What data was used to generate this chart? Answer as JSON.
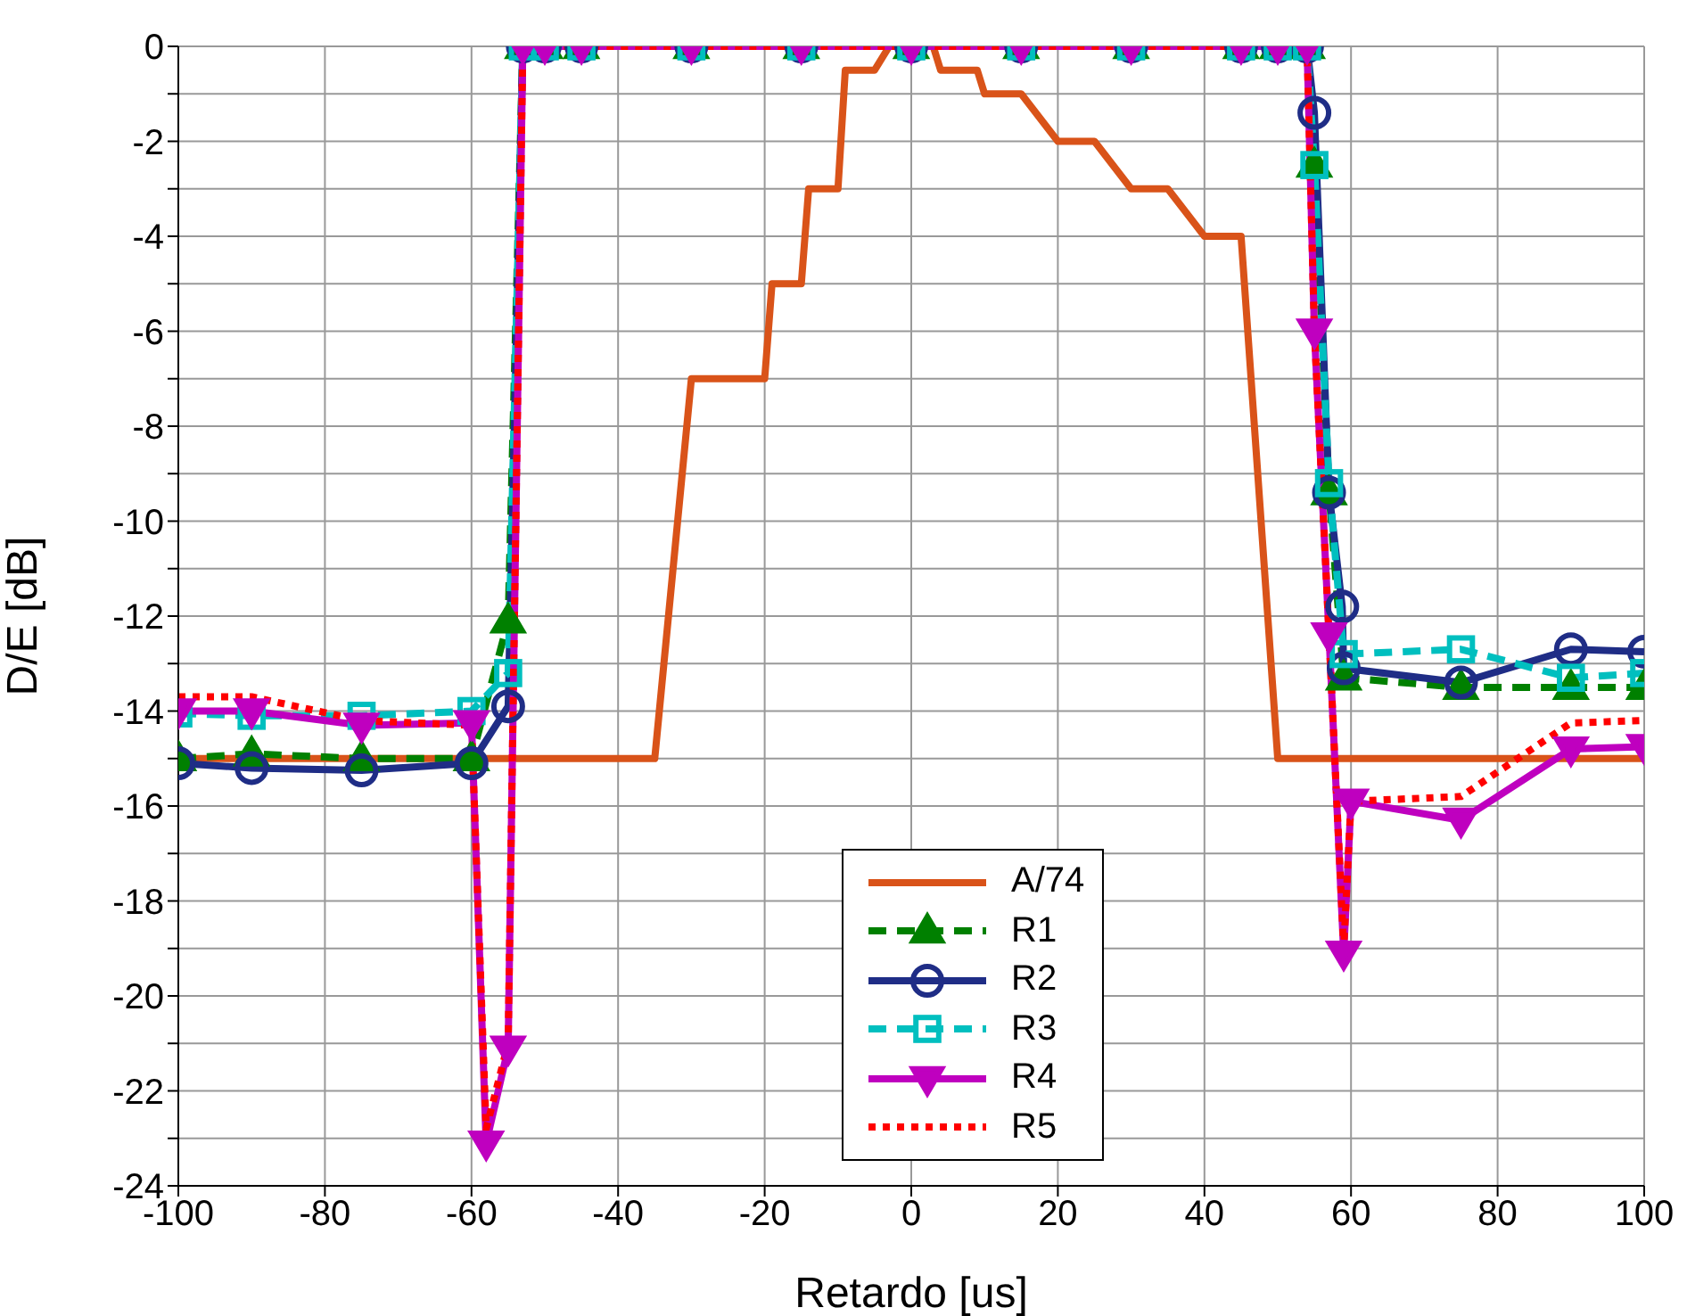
{
  "chart_data": {
    "type": "line",
    "xlabel": "Retardo [us]",
    "ylabel": "D/E [dB]",
    "xlim": [
      -100,
      100
    ],
    "ylim": [
      -24,
      0
    ],
    "xticks": [
      -100,
      -80,
      -60,
      -40,
      -20,
      0,
      20,
      40,
      60,
      80,
      100
    ],
    "yticks": [
      0,
      {
        "value": -1,
        "label": null
      },
      -2,
      {
        "value": -3,
        "label": null
      },
      -4,
      {
        "value": -5,
        "label": null
      },
      -6,
      {
        "value": -7,
        "label": null
      },
      -8,
      {
        "value": -9,
        "label": null
      },
      -10,
      {
        "value": -11,
        "label": null
      },
      -12,
      {
        "value": -13,
        "label": null
      },
      -14,
      {
        "value": -15,
        "label": null
      },
      -16,
      {
        "value": -17,
        "label": null
      },
      -18,
      {
        "value": -19,
        "label": null
      },
      -20,
      {
        "value": -21,
        "label": null
      },
      -22,
      {
        "value": -23,
        "label": null
      },
      -24
    ],
    "grid": true,
    "legend": "bottom",
    "series": [
      {
        "name": "A/74",
        "color": "#d95319",
        "marker": "none",
        "line_style": "solid",
        "x": [
          -100,
          -35,
          -30,
          -20,
          -19,
          -15,
          -14,
          -10,
          -9,
          -5,
          -3,
          3,
          4,
          9,
          10,
          15,
          20,
          25,
          30,
          35,
          40,
          45,
          50,
          100
        ],
        "values": [
          -15,
          -15,
          -7,
          -7,
          -5,
          -5,
          -3,
          -3,
          -0.5,
          -0.5,
          0,
          0,
          -0.5,
          -0.5,
          -1,
          -1,
          -2,
          -2,
          -3,
          -3,
          -4,
          -4,
          -15,
          -15
        ]
      },
      {
        "name": "R1",
        "color": "#008000",
        "marker": "triangle",
        "line_style": "dashed",
        "x": [
          -100,
          -90,
          -75,
          -60,
          -55,
          -53,
          -50,
          -45,
          -30,
          -15,
          0,
          15,
          30,
          45,
          50,
          54,
          55,
          57,
          59,
          75,
          90,
          100
        ],
        "values": [
          -15,
          -14.9,
          -15,
          -15,
          -12.1,
          0,
          0,
          0,
          0,
          0,
          0,
          0,
          0,
          0,
          0,
          0,
          -2.5,
          -9.4,
          -13.3,
          -13.5,
          -13.5,
          -13.5
        ]
      },
      {
        "name": "R2",
        "color": "#1f2d86",
        "marker": "circle",
        "line_style": "solid",
        "x": [
          -100,
          -90,
          -75,
          -60,
          -55,
          -53,
          -50,
          -45,
          -30,
          -15,
          0,
          15,
          30,
          45,
          50,
          54,
          55,
          57,
          58.8,
          59,
          75,
          90,
          100
        ],
        "values": [
          -15.1,
          -15.2,
          -15.25,
          -15.1,
          -13.9,
          0,
          0,
          0,
          0,
          0,
          0,
          0,
          0,
          0,
          0,
          0,
          -1.4,
          -9.4,
          -11.8,
          -13.1,
          -13.4,
          -12.7,
          -12.75
        ]
      },
      {
        "name": "R3",
        "color": "#00bfbf",
        "marker": "square",
        "line_style": "dashed",
        "x": [
          -100,
          -90,
          -75,
          -60,
          -55,
          -53,
          -50,
          -45,
          -30,
          -15,
          0,
          15,
          30,
          45,
          50,
          54,
          55,
          57,
          59,
          75,
          90,
          100
        ],
        "values": [
          -14.05,
          -14.1,
          -14.1,
          -14,
          -13.2,
          0,
          0,
          0,
          0,
          0,
          0,
          0,
          0,
          0,
          0,
          0,
          -2.5,
          -9.2,
          -12.8,
          -12.7,
          -13.3,
          -13.2
        ]
      },
      {
        "name": "R4",
        "color": "#bf00bf",
        "marker": "triangle-down",
        "line_style": "solid",
        "x": [
          -100,
          -90,
          -75,
          -60,
          -58,
          -55,
          -53,
          -50,
          -45,
          -30,
          -15,
          0,
          15,
          30,
          45,
          50,
          54,
          55,
          57,
          59,
          60,
          75,
          90,
          100
        ],
        "values": [
          -14,
          -14,
          -14.3,
          -14.25,
          -23.1,
          -21.1,
          0,
          0,
          0,
          0,
          0,
          0,
          0,
          0,
          0,
          0,
          0,
          -6,
          -12.4,
          -19.1,
          -15.9,
          -16.3,
          -14.8,
          -14.75
        ]
      },
      {
        "name": "R5",
        "color": "#ff0000",
        "marker": "none",
        "line_style": "dotted",
        "x": [
          -100,
          -90,
          -75,
          -60,
          -58,
          -55,
          -53,
          -50,
          -45,
          -30,
          -15,
          0,
          15,
          30,
          45,
          50,
          54,
          55,
          57,
          59,
          60,
          75,
          90,
          100
        ],
        "values": [
          -13.7,
          -13.7,
          -14.2,
          -14.3,
          -22.8,
          -21,
          0,
          0,
          0,
          0,
          0,
          0,
          0,
          0,
          0,
          0,
          0,
          -6,
          -12.4,
          -19,
          -15.9,
          -15.8,
          -14.25,
          -14.2
        ]
      }
    ]
  }
}
